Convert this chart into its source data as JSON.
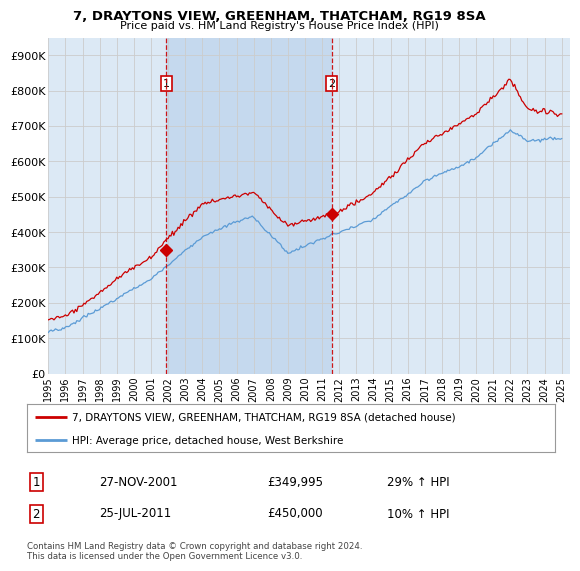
{
  "title": "7, DRAYTONS VIEW, GREENHAM, THATCHAM, RG19 8SA",
  "subtitle": "Price paid vs. HM Land Registry's House Price Index (HPI)",
  "yticks": [
    0,
    100000,
    200000,
    300000,
    400000,
    500000,
    600000,
    700000,
    800000,
    900000
  ],
  "ytick_labels": [
    "£0",
    "£100K",
    "£200K",
    "£300K",
    "£400K",
    "£500K",
    "£600K",
    "£700K",
    "£800K",
    "£900K"
  ],
  "xlim_start": 1995.0,
  "xlim_end": 2025.5,
  "ylim_min": 0,
  "ylim_max": 950000,
  "background_color": "#ffffff",
  "plot_bg_color": "#dce9f5",
  "shade_color": "#c5d9ee",
  "grid_color": "#cccccc",
  "hpi_color": "#5b9bd5",
  "price_color": "#cc0000",
  "marker1_x": 2001.9,
  "marker1_y": 349995,
  "marker2_x": 2011.56,
  "marker2_y": 450000,
  "vline1_x": 2001.9,
  "vline2_x": 2011.56,
  "vline_color": "#cc0000",
  "legend_line1": "7, DRAYTONS VIEW, GREENHAM, THATCHAM, RG19 8SA (detached house)",
  "legend_line2": "HPI: Average price, detached house, West Berkshire",
  "table_row1_num": "1",
  "table_row1_date": "27-NOV-2001",
  "table_row1_price": "£349,995",
  "table_row1_hpi": "29% ↑ HPI",
  "table_row2_num": "2",
  "table_row2_date": "25-JUL-2011",
  "table_row2_price": "£450,000",
  "table_row2_hpi": "10% ↑ HPI",
  "footer": "Contains HM Land Registry data © Crown copyright and database right 2024.\nThis data is licensed under the Open Government Licence v3.0.",
  "xtick_years": [
    1995,
    1996,
    1997,
    1998,
    1999,
    2000,
    2001,
    2002,
    2003,
    2004,
    2005,
    2006,
    2007,
    2008,
    2009,
    2010,
    2011,
    2012,
    2013,
    2014,
    2015,
    2016,
    2017,
    2018,
    2019,
    2020,
    2021,
    2022,
    2023,
    2024,
    2025
  ]
}
